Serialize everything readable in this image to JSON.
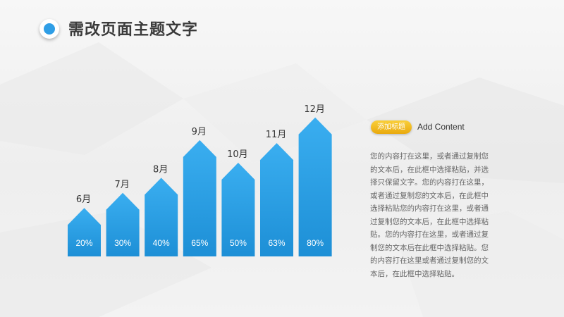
{
  "header": {
    "title": "需改页面主题文字"
  },
  "sidebar": {
    "badge": "添加标题",
    "heading": "Add Content",
    "body": "您的内容打在这里，或者通过复制您的文本后，在此框中选择粘贴，并选择只保留文字。您的内容打在这里，或者通过复制您的文本后，在此框中选择粘贴您的内容打在这里，或者通过复制您的文本后，在此框中选择粘贴。您的内容打在这里，或者通过复制您的文本后在此框中选择粘贴。您的内容打在这里或者通过复制您的文本后，在此框中选择粘贴。"
  },
  "colors": {
    "bar_top": "#3aaef0",
    "bar_bottom": "#1d8fd6",
    "accent": "#2f9ee6",
    "badge": "#f0b416"
  },
  "chart_data": {
    "type": "bar",
    "categories": [
      "6月",
      "7月",
      "8月",
      "9月",
      "10月",
      "11月",
      "12月"
    ],
    "values": [
      20,
      30,
      40,
      65,
      50,
      63,
      80
    ],
    "value_labels": [
      "20%",
      "30%",
      "40%",
      "65%",
      "50%",
      "63%",
      "80%"
    ],
    "unit": "%",
    "ylim": [
      0,
      100
    ],
    "grid": false,
    "legend": "none"
  }
}
